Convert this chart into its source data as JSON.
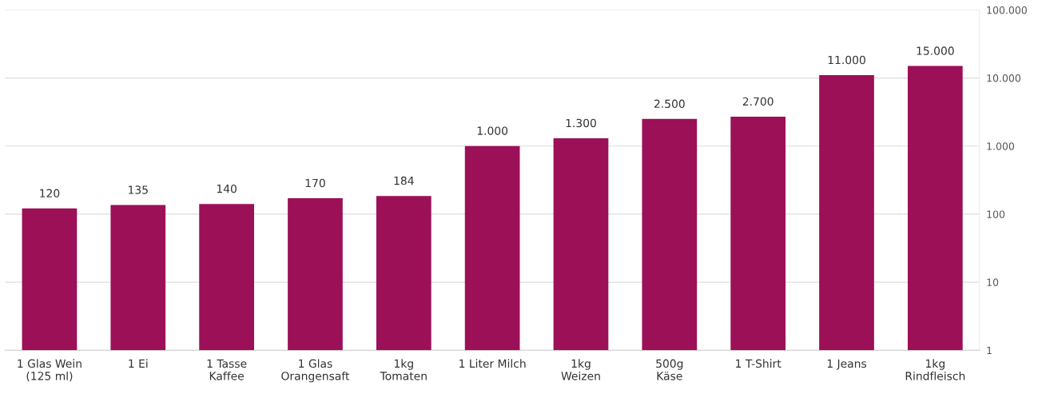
{
  "chart_data": {
    "type": "bar",
    "categories": [
      "1 Glas Wein\n(125 ml)",
      "1 Ei",
      "1 Tasse\nKaffee",
      "1 Glas\nOrangensaft",
      "1kg\nTomaten",
      "1 Liter Milch",
      "1kg\nWeizen",
      "500g\nKäse",
      "1 T-Shirt",
      "1 Jeans",
      "1kg\nRindfleisch"
    ],
    "values": [
      120,
      135,
      140,
      170,
      184,
      1000,
      1300,
      2500,
      2700,
      11000,
      15000
    ],
    "value_labels": [
      "120",
      "135",
      "140",
      "170",
      "184",
      "1.000",
      "1.300",
      "2.500",
      "2.700",
      "11.000",
      "15.000"
    ],
    "color": "#9c1057",
    "log": true,
    "ylim": [
      1,
      100000
    ],
    "yticks": [
      1,
      10,
      100,
      {
        "value": 1000,
        "label": "1.000"
      },
      {
        "value": 10000,
        "label": "10.000"
      },
      {
        "value": 100000,
        "label": "100.000"
      }
    ],
    "grid": "y"
  }
}
